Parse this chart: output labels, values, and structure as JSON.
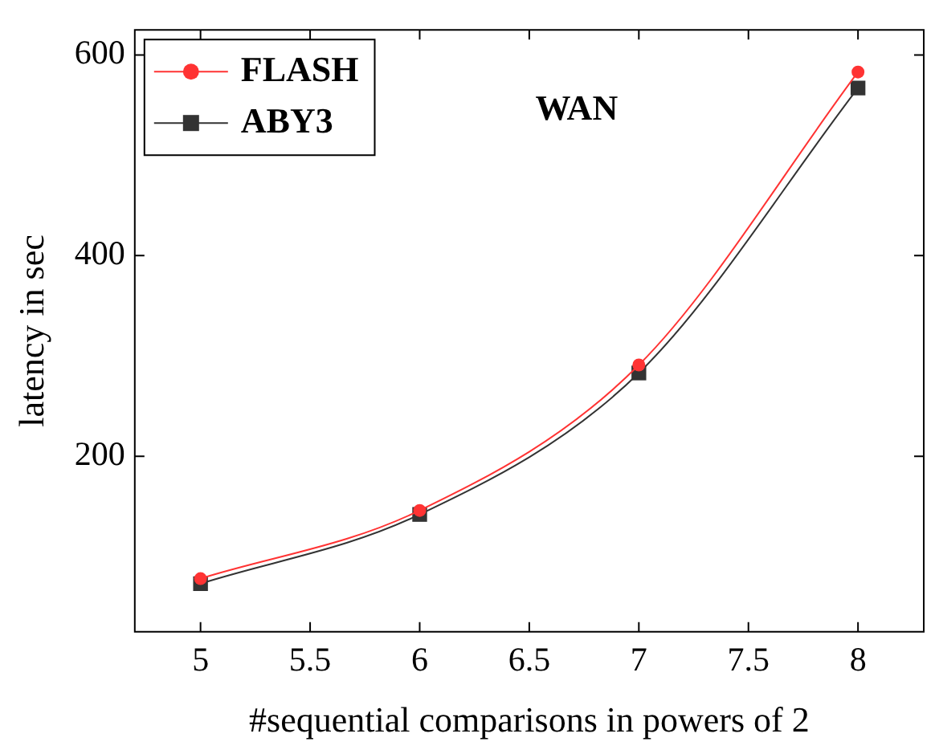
{
  "chart_data": {
    "type": "line",
    "xlabel": "#sequential comparisons in powers of 2",
    "ylabel": "latency in sec",
    "x": [
      5,
      6,
      7,
      8
    ],
    "series": [
      {
        "name": "FLASH",
        "color": "#ff3333",
        "marker": "circle",
        "values": [
          78,
          146,
          291,
          583
        ]
      },
      {
        "name": "ABY3",
        "color": "#333333",
        "marker": "square",
        "values": [
          73,
          142,
          283,
          567
        ]
      }
    ],
    "xlim": [
      4.7,
      8.3
    ],
    "xticks": [
      5,
      5.5,
      6,
      6.5,
      7,
      7.5,
      8
    ],
    "ylim": [
      25,
      625
    ],
    "yticks": [
      200,
      400,
      600
    ],
    "annotations": [
      "WAN"
    ],
    "legend": "top left",
    "grid": false
  }
}
